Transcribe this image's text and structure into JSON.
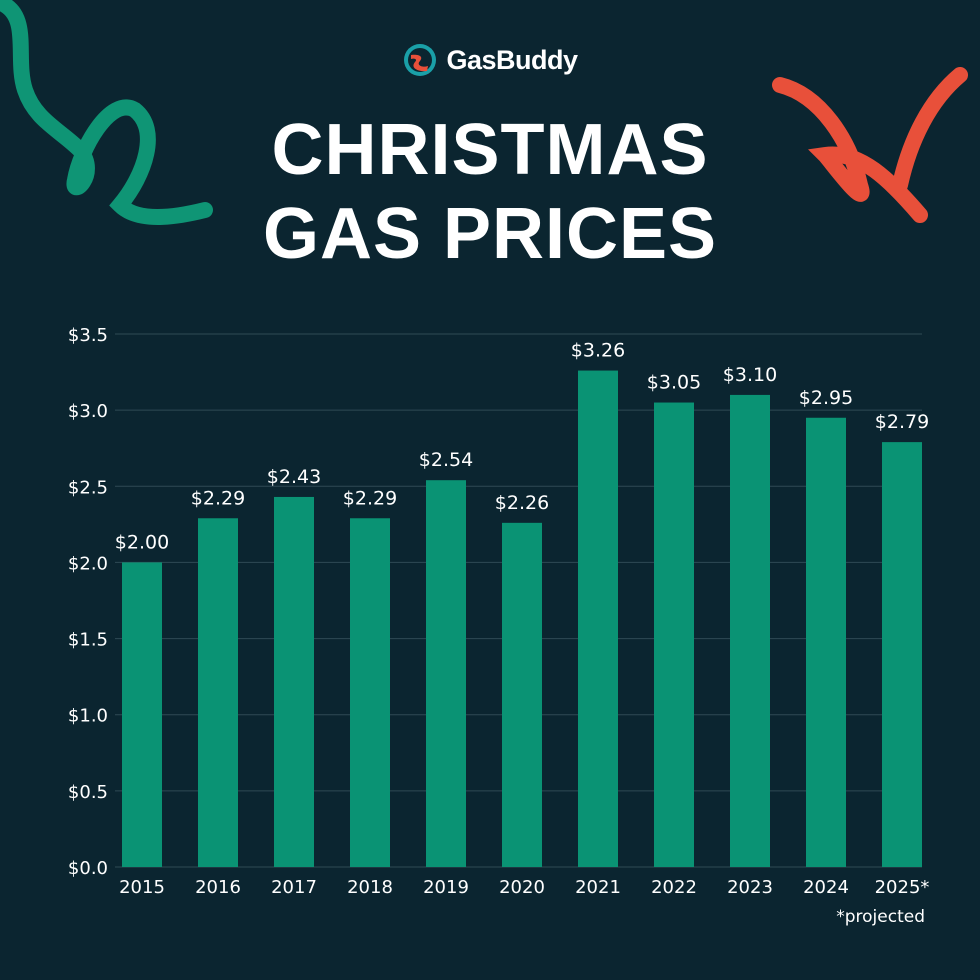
{
  "logo": {
    "text": "GasBuddy"
  },
  "title_lines": [
    "CHRISTMAS",
    "GAS PRICES"
  ],
  "colors": {
    "background": "#0b2530",
    "bar": "#0a9374",
    "grid": "#2f4a54",
    "text": "#ffffff",
    "accent_red": "#e8503a",
    "accent_green": "#0f9575"
  },
  "footnote": "*projected",
  "chart_data": {
    "type": "bar",
    "title": "CHRISTMAS GAS PRICES",
    "categories": [
      "2015",
      "2016",
      "2017",
      "2018",
      "2019",
      "2020",
      "2021",
      "2022",
      "2023",
      "2024",
      "2025*"
    ],
    "values": [
      2.0,
      2.29,
      2.43,
      2.29,
      2.54,
      2.26,
      3.26,
      3.05,
      3.1,
      2.95,
      2.79
    ],
    "data_labels": [
      "$2.00",
      "$2.29",
      "$2.43",
      "$2.29",
      "$2.54",
      "$2.26",
      "$3.26",
      "$3.05",
      "$3.10",
      "$2.95",
      "$2.79"
    ],
    "ylim": [
      0,
      3.5
    ],
    "yticks": [
      0,
      0.5,
      1.0,
      1.5,
      2.0,
      2.5,
      3.0,
      3.5
    ],
    "ytick_labels": [
      "$0.0",
      "$0.5",
      "$1.0",
      "$1.5",
      "$2.0",
      "$2.5",
      "$3.0",
      "$3.5"
    ],
    "grid": true,
    "xlabel": "",
    "ylabel": ""
  }
}
